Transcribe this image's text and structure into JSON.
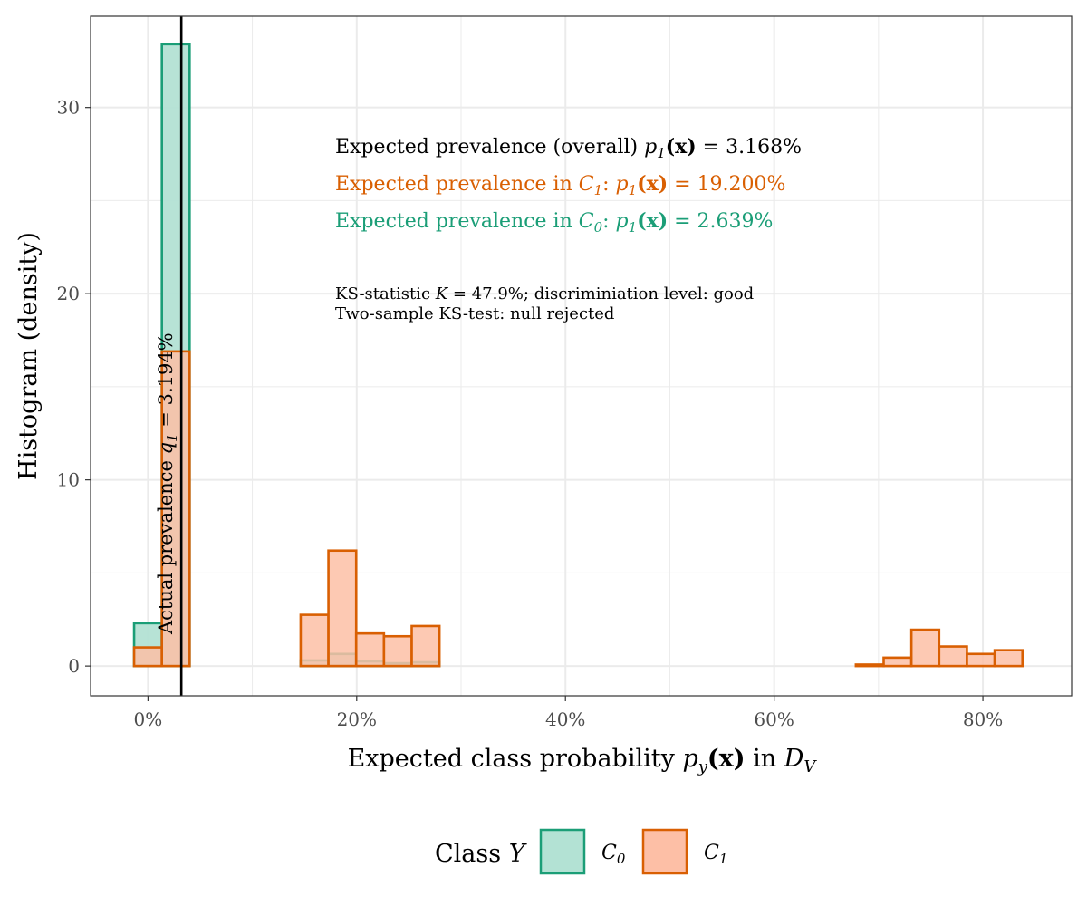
{
  "chart_data": {
    "type": "histogram",
    "xlabel_prefix": "Expected class probability ",
    "xlabel_math": "p",
    "xlabel_sub": "y",
    "xlabel_x": "(x)",
    "xlabel_suffix": " in ",
    "xlabel_dataset": "D",
    "xlabel_dataset_sub": "V",
    "ylabel": "Histogram (density)",
    "xlim": [
      -0.055,
      0.885
    ],
    "ylim": [
      -1.6,
      34.9
    ],
    "x_ticks": [
      0.0,
      0.2,
      0.4,
      0.6,
      0.8
    ],
    "x_tick_labels": [
      "0%",
      "20%",
      "40%",
      "60%",
      "80%"
    ],
    "y_ticks": [
      0,
      10,
      20,
      30
    ],
    "y_tick_labels": [
      "0",
      "10",
      "20",
      "30"
    ],
    "grid": true,
    "bin_width": 0.0266,
    "series": [
      {
        "name": "C0",
        "fill": "#b3e2d4",
        "stroke": "#1b9e77",
        "bins": [
          {
            "x0": -0.0133,
            "x1": 0.0133,
            "y": 2.3
          },
          {
            "x0": 0.0133,
            "x1": 0.0399,
            "y": 33.4
          },
          {
            "x0": 0.0399,
            "x1": 0.1463,
            "y": 0.0
          },
          {
            "x0": 0.1463,
            "x1": 0.1729,
            "y": 0.3
          },
          {
            "x0": 0.1729,
            "x1": 0.1995,
            "y": 0.65
          },
          {
            "x0": 0.1995,
            "x1": 0.2261,
            "y": 0.25
          },
          {
            "x0": 0.2261,
            "x1": 0.2527,
            "y": 0.15
          },
          {
            "x0": 0.2527,
            "x1": 0.2793,
            "y": 0.2
          },
          {
            "x0": 0.2793,
            "x1": 0.8379,
            "y": 0.0
          }
        ]
      },
      {
        "name": "C1",
        "fill": "#fdbfa6",
        "stroke": "#d95f02",
        "bins": [
          {
            "x0": -0.0133,
            "x1": 0.0133,
            "y": 1.0
          },
          {
            "x0": 0.0133,
            "x1": 0.0399,
            "y": 16.9
          },
          {
            "x0": 0.0399,
            "x1": 0.1463,
            "y": 0.0
          },
          {
            "x0": 0.1463,
            "x1": 0.1729,
            "y": 2.75
          },
          {
            "x0": 0.1729,
            "x1": 0.1995,
            "y": 6.2
          },
          {
            "x0": 0.1995,
            "x1": 0.2261,
            "y": 1.75
          },
          {
            "x0": 0.2261,
            "x1": 0.2527,
            "y": 1.6
          },
          {
            "x0": 0.2527,
            "x1": 0.2793,
            "y": 2.15
          },
          {
            "x0": 0.2793,
            "x1": 0.6783,
            "y": 0.0
          },
          {
            "x0": 0.6783,
            "x1": 0.7049,
            "y": 0.08
          },
          {
            "x0": 0.7049,
            "x1": 0.7315,
            "y": 0.45
          },
          {
            "x0": 0.7315,
            "x1": 0.7581,
            "y": 1.95
          },
          {
            "x0": 0.7581,
            "x1": 0.7847,
            "y": 1.05
          },
          {
            "x0": 0.7847,
            "x1": 0.8113,
            "y": 0.65
          },
          {
            "x0": 0.8113,
            "x1": 0.8379,
            "y": 0.85
          }
        ]
      }
    ],
    "vline": {
      "x": 0.03194,
      "label_prefix": "Actual prevalence ",
      "label_var": "q",
      "label_sub": "1",
      "label_suffix": " = 3.194%"
    },
    "annotations": {
      "overall": {
        "prefix": "Expected prevalence (overall) ",
        "var": "p",
        "sub": "1",
        "arg": "(x)",
        "value": " = 3.168%",
        "color": "#000000"
      },
      "c1": {
        "prefix": "Expected prevalence in ",
        "cls": "C",
        "cls_sub": "1",
        "colon": ": ",
        "var": "p",
        "sub": "1",
        "arg": "(x)",
        "value": " = 19.200%",
        "color": "#d95f02"
      },
      "c0": {
        "prefix": "Expected prevalence in ",
        "cls": "C",
        "cls_sub": "0",
        "colon": ": ",
        "var": "p",
        "sub": "1",
        "arg": "(x)",
        "value": " = 2.639%",
        "color": "#1b9e77"
      },
      "ks_line1_prefix": "KS-statistic ",
      "ks_line1_var": "K",
      "ks_line1_suffix": " = 47.9%; discriminiation level: good",
      "ks_line2": "Two-sample KS-test: null rejected"
    },
    "legend": {
      "title_prefix": "Class ",
      "title_var": "Y",
      "position": "bottom",
      "items": [
        {
          "label": "C",
          "sub": "0",
          "fill": "#b3e2d4",
          "stroke": "#1b9e77"
        },
        {
          "label": "C",
          "sub": "1",
          "fill": "#fdbfa6",
          "stroke": "#d95f02"
        }
      ]
    }
  }
}
